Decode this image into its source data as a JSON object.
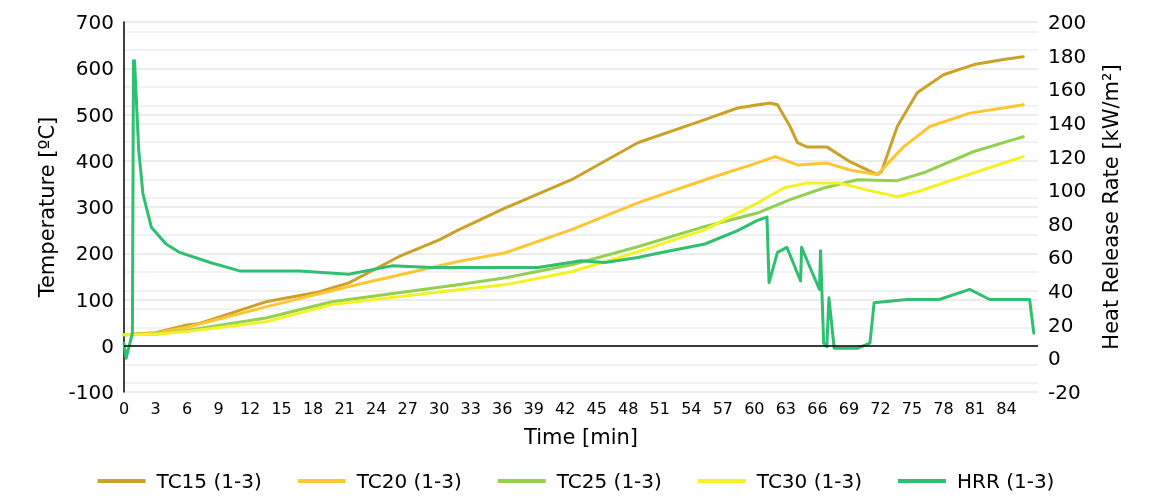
{
  "chart_data": {
    "type": "line",
    "xlabel": "Time [min]",
    "ylabel": "Temperature [ºC]",
    "y2label": "Heat Release Rate [kW/m²]",
    "xlim": [
      0,
      87
    ],
    "xticks": [
      0,
      3,
      6,
      9,
      12,
      15,
      18,
      21,
      24,
      27,
      30,
      33,
      36,
      39,
      42,
      45,
      48,
      51,
      54,
      57,
      60,
      63,
      66,
      69,
      72,
      75,
      78,
      81,
      84
    ],
    "ylim": [
      -100,
      700
    ],
    "yticks": [
      -100,
      0,
      100,
      200,
      300,
      400,
      500,
      600,
      700
    ],
    "y2lim": [
      -20,
      200
    ],
    "y2ticks": [
      -20,
      0,
      20,
      40,
      60,
      80,
      100,
      120,
      140,
      160,
      180,
      200
    ],
    "grid": "y",
    "legend": "bottom",
    "marker": "none",
    "line_style": "solid",
    "series": [
      {
        "name": "TC15 (1-3)",
        "color": "#c9a227",
        "x": [
          0,
          3,
          6,
          7.2,
          13.5,
          18.3,
          21.4,
          26.2,
          30,
          31.8,
          36.3,
          42.6,
          48.9,
          55.3,
          58.4,
          61.5,
          62.2,
          63.4,
          64.1,
          65,
          66.9,
          69.1,
          71.7,
          72.1,
          73.6,
          75.5,
          78,
          80.9,
          84,
          85.6
        ],
        "values": [
          24,
          28,
          45,
          48,
          95,
          115,
          136,
          193,
          229,
          250,
          298,
          359,
          439,
          489,
          514,
          525,
          521,
          474,
          439,
          430,
          430,
          398,
          370,
          376,
          474,
          547,
          586,
          608,
          620,
          625
        ]
      },
      {
        "name": "TC20 (1-3)",
        "color": "#ffc532",
        "x": [
          0,
          3,
          6,
          13.5,
          21.4,
          31.8,
          36.3,
          42.6,
          48.9,
          55.3,
          59.7,
          62,
          64.1,
          66.9,
          69.1,
          71.7,
          74.2,
          76.7,
          80.5,
          85.6
        ],
        "values": [
          24,
          27,
          40,
          84,
          128,
          182,
          201,
          251,
          309,
          359,
          391,
          409,
          391,
          395,
          380,
          370,
          430,
          474,
          503,
          521
        ]
      },
      {
        "name": "TC25 (1-3)",
        "color": "#92d050",
        "x": [
          0,
          3,
          6,
          13.5,
          19.8,
          31.8,
          36.3,
          42.6,
          48.9,
          55.3,
          60.3,
          63.4,
          66.6,
          69.8,
          73.6,
          76.1,
          80.9,
          85.6
        ],
        "values": [
          24,
          25,
          33,
          60,
          95,
          132,
          147,
          175,
          214,
          258,
          287,
          316,
          341,
          359,
          357,
          374,
          420,
          452
        ]
      },
      {
        "name": "TC30 (1-3)",
        "color": "#f2f224",
        "x": [
          0,
          3,
          6,
          13.5,
          19.8,
          31.8,
          36.3,
          42.6,
          48.9,
          55.3,
          60,
          62.8,
          65,
          68.1,
          70.7,
          73.6,
          75.5,
          80.9,
          85.6
        ],
        "values": [
          24,
          25,
          31,
          52,
          89,
          121,
          132,
          160,
          203,
          251,
          305,
          341,
          352,
          352,
          337,
          322,
          333,
          374,
          409
        ]
      },
      {
        "name": "HRR (1-3)",
        "color": "#2fbf71",
        "axis": "y2",
        "x": [
          0,
          0.2,
          0.8,
          0.9,
          1,
          1.4,
          1.8,
          2.6,
          4,
          5.3,
          8.2,
          11,
          16.7,
          21.4,
          25.5,
          29.3,
          33,
          39.4,
          43.5,
          45.8,
          48.9,
          52,
          55.3,
          58.4,
          60.3,
          61.2,
          61.4,
          62.2,
          63.1,
          64.4,
          64.5,
          65.3,
          66.2,
          66.3,
          66.6,
          66.9,
          67.1,
          67.6,
          69.8,
          71,
          71.4,
          74.5,
          77.6,
          80.5,
          82.4,
          86.2,
          86.6
        ],
        "values": [
          9,
          0,
          15,
          177,
          177,
          124,
          98,
          78,
          68,
          63,
          57,
          52,
          52,
          50,
          55,
          54,
          54,
          54,
          58,
          57,
          60,
          64,
          68,
          76,
          82,
          84,
          45,
          63,
          66,
          46,
          66,
          54,
          41,
          64,
          9,
          7,
          36,
          6,
          6,
          9,
          33,
          35,
          35,
          41,
          35,
          35,
          15
        ]
      }
    ]
  }
}
